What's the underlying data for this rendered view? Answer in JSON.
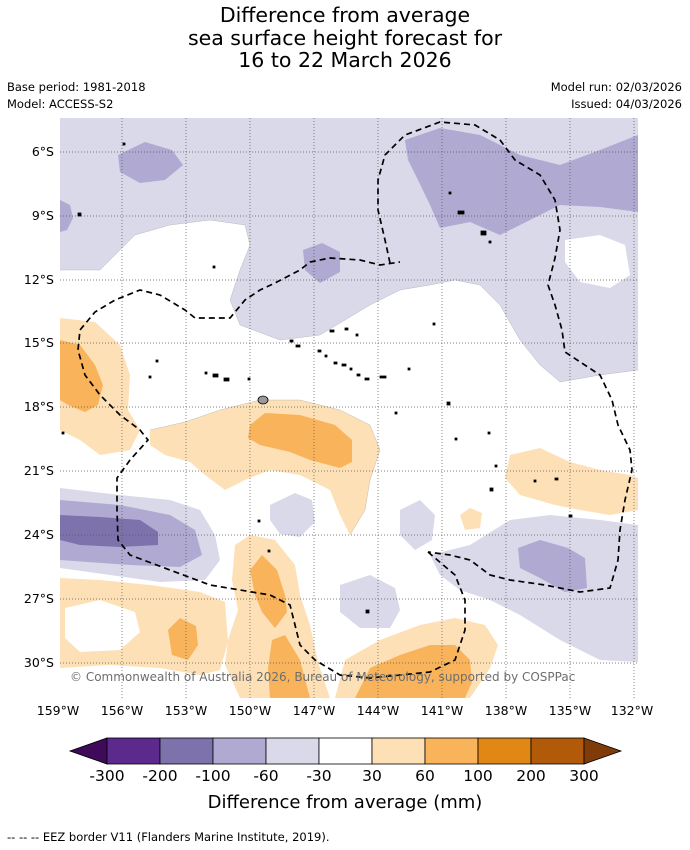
{
  "title": {
    "line1": "Difference from average",
    "line2": "sea surface height forecast for",
    "line3": "16 to 22 March 2026"
  },
  "meta": {
    "base_period": "Base period: 1981-2018",
    "model": "Model: ACCESS-S2",
    "model_run": "Model run: 02/03/2026",
    "issued": "Issued: 04/03/2026"
  },
  "map": {
    "region": "South Pacific - Cook Islands EEZ",
    "lon_range_deg": [
      -160,
      -131.7
    ],
    "lat_range_deg": [
      -31.7,
      -4.2
    ],
    "y_ticks": [
      "6°S",
      "9°S",
      "12°S",
      "15°S",
      "18°S",
      "21°S",
      "24°S",
      "27°S",
      "30°S"
    ],
    "x_ticks": [
      "159°W",
      "156°W",
      "153°W",
      "150°W",
      "147°W",
      "144°W",
      "141°W",
      "138°W",
      "135°W",
      "132°W"
    ],
    "copyright": "© Commonwealth of Australia 2026, Bureau of Meteorology, supported by COSPPac"
  },
  "colorbar": {
    "title": "Difference from average (mm)",
    "labels": [
      "-300",
      "-200",
      "-100",
      "-60",
      "-30",
      "30",
      "60",
      "100",
      "200",
      "300"
    ],
    "colors": [
      "#3f0a5a",
      "#5b2a8c",
      "#7e72ad",
      "#b0a9d1",
      "#d9d9ea",
      "#ffffff",
      "#fde0b6",
      "#f9b35b",
      "#e08715",
      "#b15b0a",
      "#7f3b08"
    ]
  },
  "colors": {
    "neg1": "#d9d9ea",
    "neg2": "#b0a9d1",
    "neg3": "#7e72ad",
    "pos1": "#fde0b6",
    "pos2": "#f9b35b",
    "eez_border": "#000000"
  },
  "footer": "--  --  -- EEZ border V11 (Flanders Marine Institute, 2019)."
}
